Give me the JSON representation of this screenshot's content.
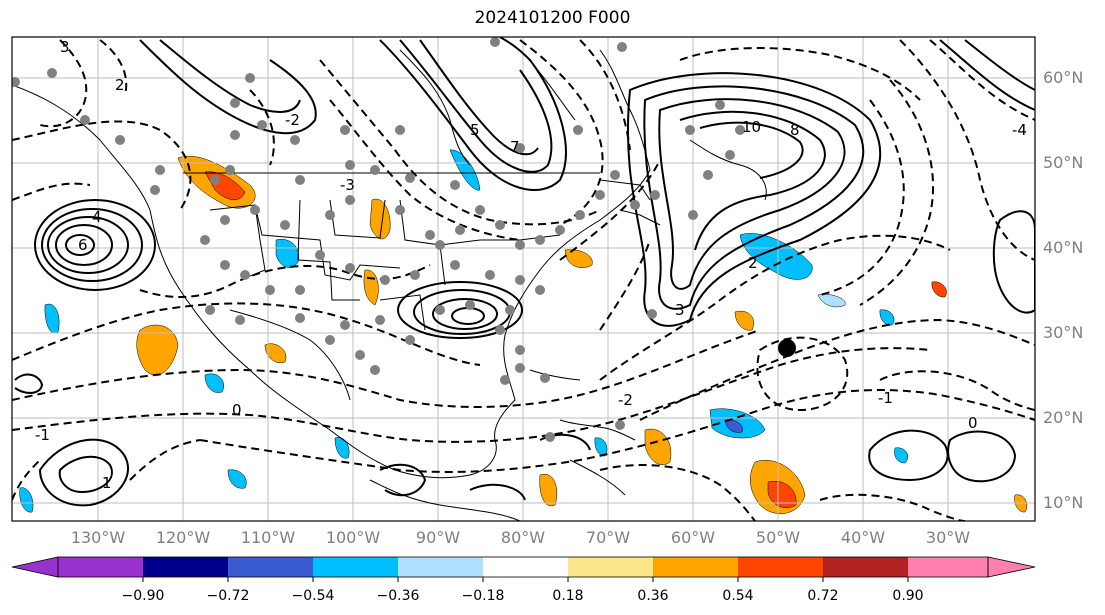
{
  "title": "2024101200 F000",
  "map": {
    "lat_labels": [
      "60°N",
      "50°N",
      "40°N",
      "30°N",
      "20°N",
      "10°N"
    ],
    "lon_labels": [
      "130°W",
      "120°W",
      "110°W",
      "100°W",
      "90°W",
      "80°W",
      "70°W",
      "60°W",
      "50°W",
      "40°W",
      "30°W"
    ],
    "contour_labels": [
      "3",
      "2",
      "-2",
      "4",
      "6",
      "5",
      "7",
      "10",
      "8",
      "-3",
      "-4",
      "-1",
      "3",
      "2",
      "-2",
      "0",
      "0",
      "1",
      "-1"
    ]
  },
  "colorbar": {
    "labels": [
      "−0.90",
      "−0.72",
      "−0.54",
      "−0.36",
      "−0.18",
      "0.18",
      "0.36",
      "0.54",
      "0.72",
      "0.90"
    ],
    "colors": [
      "#9932cc",
      "#00008b",
      "#3b5bd0",
      "#00bfff",
      "#b0e0ff",
      "#ffffff",
      "#fde68a",
      "#ffa500",
      "#ff4500",
      "#b22222",
      "#ff80b0"
    ]
  },
  "colors": {
    "land_border": "#000000",
    "contour": "#000000",
    "grid": "#bfbfbf",
    "station": "#808080",
    "marker": "#000000"
  }
}
